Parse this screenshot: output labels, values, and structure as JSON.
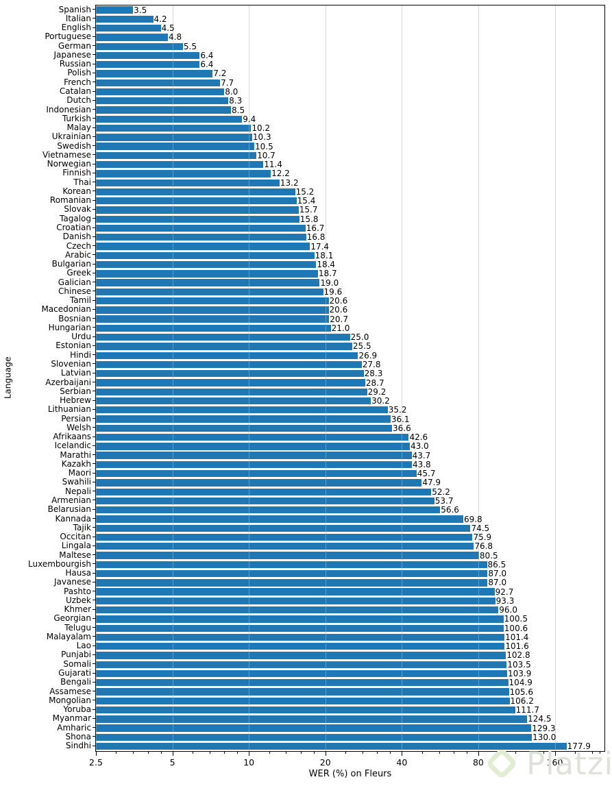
{
  "chart_data": {
    "type": "bar",
    "orientation": "horizontal",
    "title": "",
    "xlabel": "WER (%) on Fleurs",
    "ylabel": "Language",
    "x_scale": "log",
    "xlim": [
      2.5,
      251
    ],
    "grid": "vertical-major",
    "legend": "none",
    "x_ticks": [
      2.5,
      5,
      10,
      20,
      40,
      80,
      160
    ],
    "x_tick_labels": [
      "2.5",
      "5",
      "10",
      "20",
      "40",
      "80",
      "160"
    ],
    "x_minor_ticks": [
      3,
      3.5,
      4,
      4.5,
      6,
      7,
      8,
      9,
      12,
      14,
      16,
      18,
      24,
      28,
      32,
      36,
      48,
      56,
      64,
      72,
      96,
      112,
      128,
      144,
      192,
      224,
      240
    ],
    "categories": [
      "Spanish",
      "Italian",
      "English",
      "Portuguese",
      "German",
      "Japanese",
      "Russian",
      "Polish",
      "French",
      "Catalan",
      "Dutch",
      "Indonesian",
      "Turkish",
      "Malay",
      "Ukrainian",
      "Swedish",
      "Vietnamese",
      "Norwegian",
      "Finnish",
      "Thai",
      "Korean",
      "Romanian",
      "Slovak",
      "Tagalog",
      "Croatian",
      "Danish",
      "Czech",
      "Arabic",
      "Bulgarian",
      "Greek",
      "Galician",
      "Chinese",
      "Tamil",
      "Macedonian",
      "Bosnian",
      "Hungarian",
      "Urdu",
      "Estonian",
      "Hindi",
      "Slovenian",
      "Latvian",
      "Azerbaijani",
      "Serbian",
      "Hebrew",
      "Lithuanian",
      "Persian",
      "Welsh",
      "Afrikaans",
      "Icelandic",
      "Marathi",
      "Kazakh",
      "Maori",
      "Swahili",
      "Nepali",
      "Armenian",
      "Belarusian",
      "Kannada",
      "Tajik",
      "Occitan",
      "Lingala",
      "Maltese",
      "Luxembourgish",
      "Hausa",
      "Javanese",
      "Pashto",
      "Uzbek",
      "Khmer",
      "Georgian",
      "Telugu",
      "Malayalam",
      "Lao",
      "Punjabi",
      "Somali",
      "Gujarati",
      "Bengali",
      "Assamese",
      "Mongolian",
      "Yoruba",
      "Myanmar",
      "Amharic",
      "Shona",
      "Sindhi"
    ],
    "values": [
      3.5,
      4.2,
      4.5,
      4.8,
      5.5,
      6.4,
      6.4,
      7.2,
      7.7,
      8.0,
      8.3,
      8.5,
      9.4,
      10.2,
      10.3,
      10.5,
      10.7,
      11.4,
      12.2,
      13.2,
      15.2,
      15.4,
      15.7,
      15.8,
      16.7,
      16.8,
      17.4,
      18.1,
      18.4,
      18.7,
      19.0,
      19.6,
      20.6,
      20.6,
      20.7,
      21.0,
      25.0,
      25.5,
      26.9,
      27.8,
      28.3,
      28.7,
      29.2,
      30.2,
      35.2,
      36.1,
      36.6,
      42.6,
      43.0,
      43.7,
      43.8,
      45.7,
      47.9,
      52.2,
      53.7,
      56.6,
      69.8,
      74.5,
      75.9,
      76.8,
      80.5,
      86.5,
      87.0,
      87.0,
      92.7,
      93.3,
      96.0,
      100.5,
      100.6,
      101.4,
      101.6,
      102.8,
      103.5,
      103.9,
      104.9,
      105.6,
      106.2,
      111.7,
      124.5,
      129.3,
      130.0,
      177.9
    ],
    "value_labels": [
      "3.5",
      "4.2",
      "4.5",
      "4.8",
      "5.5",
      "6.4",
      "6.4",
      "7.2",
      "7.7",
      "8.0",
      "8.3",
      "8.5",
      "9.4",
      "10.2",
      "10.3",
      "10.5",
      "10.7",
      "11.4",
      "12.2",
      "13.2",
      "15.2",
      "15.4",
      "15.7",
      "15.8",
      "16.7",
      "16.8",
      "17.4",
      "18.1",
      "18.4",
      "18.7",
      "19.0",
      "19.6",
      "20.6",
      "20.6",
      "20.7",
      "21.0",
      "25.0",
      "25.5",
      "26.9",
      "27.8",
      "28.3",
      "28.7",
      "29.2",
      "30.2",
      "35.2",
      "36.1",
      "36.6",
      "42.6",
      "43.0",
      "43.7",
      "43.8",
      "45.7",
      "47.9",
      "52.2",
      "53.7",
      "56.6",
      "69.8",
      "74.5",
      "75.9",
      "76.8",
      "80.5",
      "86.5",
      "87.0",
      "87.0",
      "92.7",
      "93.3",
      "96.0",
      "100.5",
      "100.6",
      "101.4",
      "101.6",
      "102.8",
      "103.5",
      "103.9",
      "104.9",
      "105.6",
      "106.2",
      "111.7",
      "124.5",
      "129.3",
      "130.0",
      "177.9"
    ],
    "bar_color": "#1f77b4",
    "grid_color": "#c9c9c9",
    "axis_color": "#000000",
    "text_color": "#000000"
  },
  "watermark": {
    "text": "Platzi",
    "text_color": "#e0e1db",
    "logo_color": "#e2ecd2"
  }
}
